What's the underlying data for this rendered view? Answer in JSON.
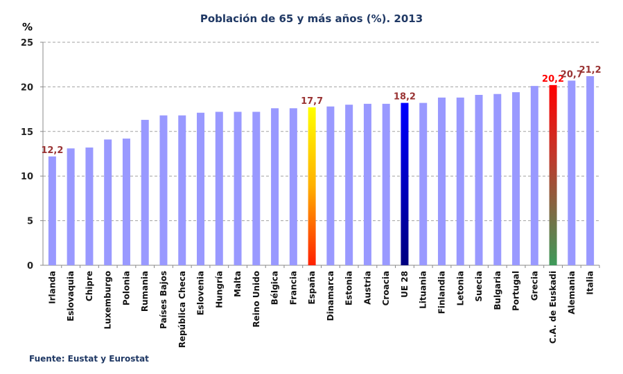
{
  "chart_data": {
    "type": "bar",
    "title": "Población de 65 y más años (%). 2013",
    "ylabel": "%",
    "ylim": [
      0,
      25
    ],
    "yticks": [
      0,
      5,
      10,
      15,
      20,
      25
    ],
    "grid": true,
    "categories": [
      "Irlanda",
      "Eslovaquia",
      "Chipre",
      "Luxemburgo",
      "Polonia",
      "Rumania",
      "Países Bajos",
      "República Checa",
      "Eslovenia",
      "Hungría",
      "Malta",
      "Reino Unido",
      "Bélgica",
      "Francia",
      "España",
      "Dinamarca",
      "Estonia",
      "Austria",
      "Croacia",
      "UE 28",
      "Lituania",
      "Finlandia",
      "Letonia",
      "Suecia",
      "Bulgaria",
      "Portugal",
      "Grecia",
      "C.A. de Euskadi",
      "Alemania",
      "Italia"
    ],
    "values": [
      12.2,
      13.1,
      13.2,
      14.1,
      14.2,
      16.3,
      16.8,
      16.8,
      17.1,
      17.2,
      17.2,
      17.2,
      17.6,
      17.6,
      17.7,
      17.8,
      18.0,
      18.1,
      18.1,
      18.2,
      18.2,
      18.8,
      18.8,
      19.1,
      19.2,
      19.4,
      20.1,
      20.2,
      20.7,
      21.2
    ],
    "data_labels": {
      "Irlanda": "12,2",
      "España": "17,7",
      "UE 28": "18,2",
      "C.A. de Euskadi": "20,2",
      "Alemania": "20,7",
      "Italia": "21,2"
    },
    "colors": {
      "default": "#9999ff",
      "España": [
        "#ffff00",
        "#ff2000"
      ],
      "UE 28": [
        "#0000ff",
        "#000080"
      ],
      "C.A. de Euskadi": [
        "#ff0000",
        "#3d9a5a"
      ],
      "label": "#993333",
      "label_highlight": "#ff0000"
    }
  },
  "source": "Fuente: Eustat y Eurostat"
}
